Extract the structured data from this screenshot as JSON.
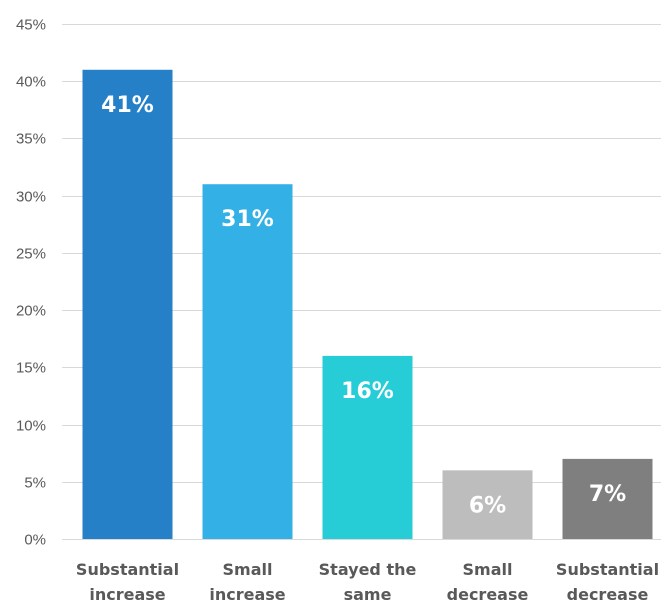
{
  "chart_data": {
    "type": "bar",
    "categories": [
      [
        "Substantial",
        "increase"
      ],
      [
        "Small",
        "increase"
      ],
      [
        "Stayed the",
        "same"
      ],
      [
        "Small",
        "decrease"
      ],
      [
        "Substantial",
        "decrease"
      ]
    ],
    "values": [
      41,
      31,
      16,
      6,
      7
    ],
    "data_labels": [
      "41%",
      "31%",
      "16%",
      "6%",
      "7%"
    ],
    "colors": [
      "#2680c8",
      "#33b0e6",
      "#26cdd6",
      "#bdbdbd",
      "#7f7f7f"
    ],
    "ylim": [
      0,
      45
    ],
    "y_ticks": [
      0,
      5,
      10,
      15,
      20,
      25,
      30,
      35,
      40,
      45
    ],
    "y_tick_labels": [
      "0%",
      "5%",
      "10%",
      "15%",
      "20%",
      "25%",
      "30%",
      "35%",
      "40%",
      "45%"
    ],
    "grid": true,
    "legend": "none",
    "title": "",
    "xlabel": "",
    "ylabel": ""
  }
}
